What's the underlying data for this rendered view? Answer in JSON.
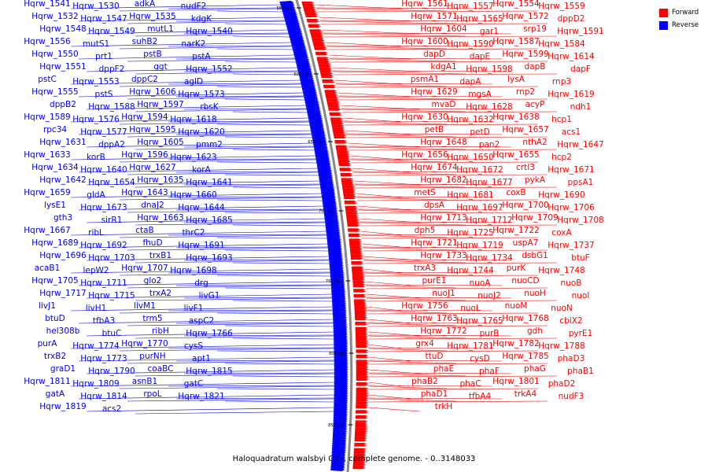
{
  "caption": "Haloquadratum walsbyi C23, complete genome. - 0..3148033",
  "legend": [
    {
      "label": "Forward",
      "color": "#ff0000"
    },
    {
      "label": "Reverse",
      "color": "#0000ff"
    }
  ],
  "ticks": [
    {
      "label": "550 kbp"
    },
    {
      "label": "600 kbp"
    },
    {
      "label": "650 kbp"
    },
    {
      "label": "700 kbp"
    },
    {
      "label": "750 kbp"
    },
    {
      "label": "800 kbp"
    },
    {
      "label": "850 kbp"
    }
  ],
  "reverse_genes": [
    "Hqrw_1541",
    "Hqrw_1530",
    "adkA",
    "nudF2",
    "Hqrw_1532",
    "Hqrw_1547",
    "Hqrw_1535",
    "kdgK",
    "Hqrw_1548",
    "Hqrw_1549",
    "mutL1",
    "Hqrw_1540",
    "Hqrw_1556",
    "mutS1",
    "suhB2",
    "narK2",
    "Hqrw_1550",
    "prt1",
    "pstB",
    "pstA",
    "Hqrw_1551",
    "dppF2",
    "ggt",
    "Hqrw_1552",
    "pstC",
    "Hqrw_1553",
    "dppC2",
    "aglD",
    "Hqrw_1555",
    "pstS",
    "Hqrw_1606",
    "Hqrw_1573",
    "dppB2",
    "Hqrw_1588",
    "Hqrw_1597",
    "rbsK",
    "Hqrw_1589",
    "Hqrw_1576",
    "Hqrw_1594",
    "Hqrw_1618",
    "rpc34",
    "Hqrw_1577",
    "Hqrw_1595",
    "Hqrw_1620",
    "Hqrw_1631",
    "dppA2",
    "Hqrw_1605",
    "pmm2",
    "Hqrw_1633",
    "korB",
    "Hqrw_1596",
    "Hqrw_1623",
    "Hqrw_1634",
    "Hqrw_1640",
    "Hqrw_1627",
    "korA",
    "Hqrw_1642",
    "Hqrw_1654",
    "Hqrw_1635",
    "Hqrw_1641",
    "Hqrw_1659",
    "gldA",
    "Hqrw_1643",
    "Hqrw_1660",
    "lysE1",
    "Hqrw_1673",
    "dnaJ2",
    "Hqrw_1644",
    "gth3",
    "sirR1",
    "Hqrw_1663",
    "Hqrw_1685",
    "Hqrw_1667",
    "ribL",
    "ctaB",
    "thrC2",
    "Hqrw_1689",
    "Hqrw_1692",
    "fhuD",
    "Hqrw_1691",
    "Hqrw_1696",
    "Hqrw_1703",
    "trxB1",
    "Hqrw_1693",
    "acaB1",
    "lepW2",
    "Hqrw_1707",
    "Hqrw_1698",
    "Hqrw_1705",
    "Hqrw_1711",
    "glo2",
    "drg",
    "Hqrw_1717",
    "Hqrw_1715",
    "trxA2",
    "livG1",
    "livJ1",
    "livH1",
    "livM1",
    "livF1",
    "btuD",
    "tfbA3",
    "trm5",
    "aspC2",
    "hel308b",
    "btuC",
    "ribH",
    "Hqrw_1766",
    "purA",
    "Hqrw_1774",
    "Hqrw_1770",
    "cysS",
    "trxB2",
    "Hqrw_1773",
    "purNH",
    "apt1",
    "graD1",
    "Hqrw_1790",
    "coaBC",
    "Hqrw_1815",
    "Hqrw_1811",
    "Hqrw_1809",
    "asnB1",
    "gatC",
    "gatA",
    "Hqrw_1814",
    "rpoL",
    "Hqrw_1821",
    "Hqrw_1819",
    "acs2"
  ],
  "forward_genes": [
    "Hqrw_1561",
    "Hqrw_1557",
    "Hqrw_1554",
    "Hqrw_1559",
    "Hqrw_1571",
    "Hqrw_1565",
    "Hqrw_1572",
    "dppD2",
    "Hqrw_1604",
    "gar1",
    "srp19",
    "Hqrw_1591",
    "Hqrw_1600",
    "Hqrw_1590",
    "Hqrw_1587",
    "Hqrw_1584",
    "dapD",
    "dapE",
    "Hqrw_1599",
    "Hqrw_1614",
    "kdgA1",
    "Hqrw_1598",
    "dapB",
    "dapF",
    "psmA1",
    "dapA",
    "lysA",
    "rnp3",
    "Hqrw_1629",
    "mgsA",
    "rnp2",
    "Hqrw_1619",
    "mvaD",
    "Hqrw_1628",
    "acyP",
    "ndh1",
    "Hqrw_1630",
    "Hqrw_1632",
    "Hqrw_1638",
    "hcp1",
    "petB",
    "petD",
    "Hqrw_1657",
    "acs1",
    "Hqrw_1648",
    "pan2",
    "nthA2",
    "Hqrw_1647",
    "Hqrw_1656",
    "Hqrw_1650",
    "Hqrw_1655",
    "hcp2",
    "Hqrw_1674",
    "Hqrw_1672",
    "crtI3",
    "Hqrw_1671",
    "Hqrw_1682",
    "Hqrw_1677",
    "pykA",
    "ppsA1",
    "metS",
    "Hqrw_1681",
    "coxB",
    "Hqrw_1690",
    "dpsA",
    "Hqrw_1697",
    "Hqrw_1700",
    "Hqrw_1706",
    "Hqrw_1713",
    "Hqrw_1712",
    "Hqrw_1709",
    "Hqrw_1708",
    "dph5",
    "Hqrw_1725",
    "Hqrw_1722",
    "coxA",
    "Hqrw_1721",
    "Hqrw_1719",
    "uspA7",
    "Hqrw_1737",
    "Hqrw_1733",
    "Hqrw_1734",
    "dsbG1",
    "btuF",
    "trxA3",
    "Hqrw_1744",
    "purK",
    "Hqrw_1748",
    "purE1",
    "nuoA",
    "nuoCD",
    "nuoB",
    "nuoJ1",
    "nuoJ2",
    "nuoH",
    "nuoI",
    "Hqrw_1756",
    "nuoL",
    "nuoM",
    "nuoN",
    "Hqrw_1763",
    "Hqrw_1765",
    "Hqrw_1768",
    "cbiX2",
    "Hqrw_1772",
    "purB",
    "gdh",
    "pyrE1",
    "grx4",
    "Hqrw_1781",
    "Hqrw_1782",
    "Hqrw_1788",
    "ttuD",
    "cysD",
    "Hqrw_1785",
    "phaD3",
    "phaE",
    "phaF",
    "phaG",
    "phaB1",
    "phaB2",
    "phaC",
    "Hqrw_1801",
    "phaD2",
    "phaD1",
    "tfbA4",
    "trkA4",
    "nudF3",
    "trkH"
  ],
  "colors": {
    "forward": "#ff0000",
    "reverse": "#0000ff",
    "forward_line": "#dd0000",
    "reverse_line": "#0000cc",
    "backbone": "#888888"
  }
}
